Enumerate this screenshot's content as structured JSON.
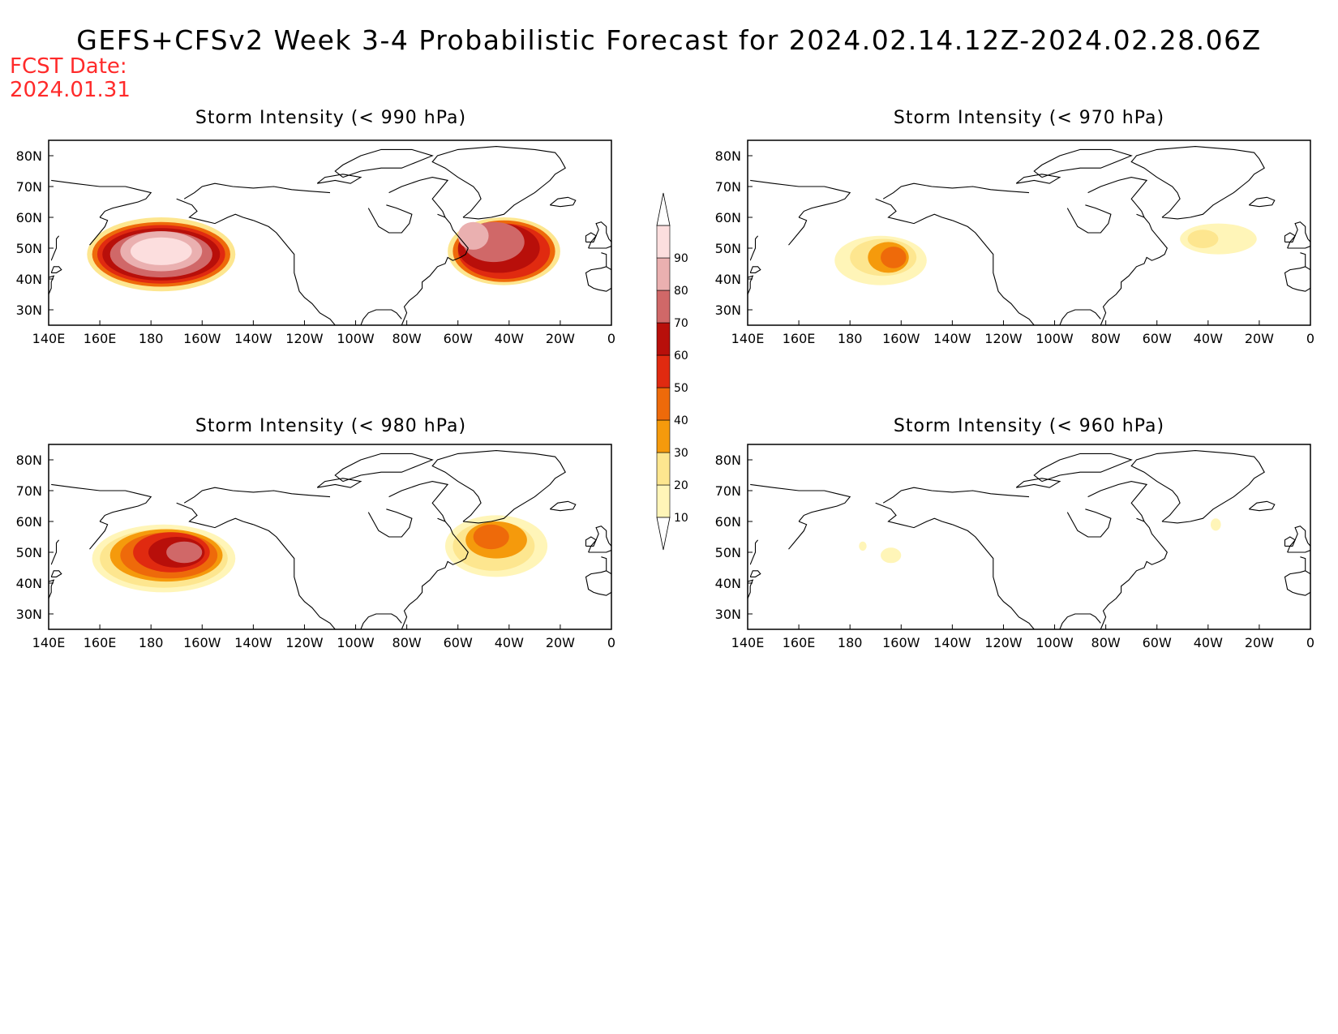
{
  "title": "GEFS+CFSv2 Week 3-4 Probabilistic Forecast for 2024.02.14.12Z-2024.02.28.06Z",
  "fcst_label": "FCST Date:",
  "fcst_date": "2024.01.31",
  "map": {
    "lon_range": [
      140,
      360
    ],
    "lat_range": [
      25,
      85
    ],
    "lon_ticks": [
      {
        "lon": 140,
        "label": "140E"
      },
      {
        "lon": 160,
        "label": "160E"
      },
      {
        "lon": 180,
        "label": "180"
      },
      {
        "lon": 200,
        "label": "160W"
      },
      {
        "lon": 220,
        "label": "140W"
      },
      {
        "lon": 240,
        "label": "120W"
      },
      {
        "lon": 260,
        "label": "100W"
      },
      {
        "lon": 280,
        "label": "80W"
      },
      {
        "lon": 300,
        "label": "60W"
      },
      {
        "lon": 320,
        "label": "40W"
      },
      {
        "lon": 340,
        "label": "20W"
      },
      {
        "lon": 360,
        "label": "0"
      }
    ],
    "lat_ticks": [
      {
        "lat": 30,
        "label": "30N"
      },
      {
        "lat": 40,
        "label": "40N"
      },
      {
        "lat": 50,
        "label": "50N"
      },
      {
        "lat": 60,
        "label": "60N"
      },
      {
        "lat": 70,
        "label": "70N"
      },
      {
        "lat": 80,
        "label": "80N"
      }
    ]
  },
  "colorbar": {
    "levels": [
      "10",
      "20",
      "30",
      "40",
      "50",
      "60",
      "70",
      "80",
      "90"
    ],
    "colors": [
      "#fff5b8",
      "#fde68f",
      "#f59a0c",
      "#ee6a0a",
      "#e02a10",
      "#b80f0a",
      "#d06868",
      "#eab0b0",
      "#fcdede"
    ]
  },
  "panels": [
    {
      "title": "Storm Intensity (< 990 hPa)",
      "blobs": [
        {
          "lon": 184,
          "lat": 48,
          "rlon": 29,
          "rlat": 12,
          "level": 1
        },
        {
          "lon": 184,
          "lat": 48,
          "rlon": 27,
          "rlat": 10.5,
          "level": 3
        },
        {
          "lon": 184,
          "lat": 48,
          "rlon": 25,
          "rlat": 9.5,
          "level": 4
        },
        {
          "lon": 184,
          "lat": 48,
          "rlon": 23,
          "rlat": 8.5,
          "level": 5
        },
        {
          "lon": 184,
          "lat": 48,
          "rlon": 20,
          "rlat": 7.5,
          "level": 6
        },
        {
          "lon": 184,
          "lat": 49,
          "rlon": 16,
          "rlat": 6.5,
          "level": 7
        },
        {
          "lon": 184,
          "lat": 49,
          "rlon": 12,
          "rlat": 4.5,
          "level": 8
        },
        {
          "lon": 318,
          "lat": 49,
          "rlon": 22,
          "rlat": 11,
          "level": 1
        },
        {
          "lon": 318,
          "lat": 49,
          "rlon": 20,
          "rlat": 10,
          "level": 3
        },
        {
          "lon": 318,
          "lat": 49,
          "rlon": 18,
          "rlat": 9,
          "level": 4
        },
        {
          "lon": 316,
          "lat": 50,
          "rlon": 16,
          "rlat": 8,
          "level": 5
        },
        {
          "lon": 314,
          "lat": 52,
          "rlon": 12,
          "rlat": 6.5,
          "level": 6
        },
        {
          "lon": 306,
          "lat": 54,
          "rlon": 6,
          "rlat": 4.5,
          "level": 7
        }
      ]
    },
    {
      "title": "Storm Intensity (< 970 hPa)",
      "blobs": [
        {
          "lon": 192,
          "lat": 46,
          "rlon": 18,
          "rlat": 8,
          "level": 0
        },
        {
          "lon": 193,
          "lat": 47,
          "rlon": 13,
          "rlat": 6,
          "level": 1
        },
        {
          "lon": 195,
          "lat": 47,
          "rlon": 8,
          "rlat": 5,
          "level": 2
        },
        {
          "lon": 197,
          "lat": 47,
          "rlon": 5,
          "rlat": 3.5,
          "level": 3
        },
        {
          "lon": 324,
          "lat": 53,
          "rlon": 15,
          "rlat": 5,
          "level": 0
        },
        {
          "lon": 318,
          "lat": 53,
          "rlon": 6,
          "rlat": 3,
          "level": 1
        }
      ]
    },
    {
      "title": "Storm Intensity (< 980 hPa)",
      "blobs": [
        {
          "lon": 185,
          "lat": 48,
          "rlon": 28,
          "rlat": 11,
          "level": 0
        },
        {
          "lon": 185,
          "lat": 48,
          "rlon": 25,
          "rlat": 9.5,
          "level": 1
        },
        {
          "lon": 186,
          "lat": 49,
          "rlon": 22,
          "rlat": 8.5,
          "level": 2
        },
        {
          "lon": 187,
          "lat": 49,
          "rlon": 19,
          "rlat": 7.5,
          "level": 3
        },
        {
          "lon": 188,
          "lat": 50,
          "rlon": 15,
          "rlat": 6.5,
          "level": 4
        },
        {
          "lon": 190,
          "lat": 50,
          "rlon": 11,
          "rlat": 5,
          "level": 5
        },
        {
          "lon": 193,
          "lat": 50,
          "rlon": 7,
          "rlat": 3.5,
          "level": 6
        },
        {
          "lon": 315,
          "lat": 52,
          "rlon": 20,
          "rlat": 10,
          "level": 0
        },
        {
          "lon": 314,
          "lat": 52,
          "rlon": 16,
          "rlat": 8,
          "level": 1
        },
        {
          "lon": 315,
          "lat": 54,
          "rlon": 12,
          "rlat": 6,
          "level": 2
        },
        {
          "lon": 313,
          "lat": 55,
          "rlon": 7,
          "rlat": 4,
          "level": 3
        }
      ]
    },
    {
      "title": "Storm Intensity (< 960 hPa)",
      "blobs": [
        {
          "lon": 196,
          "lat": 49,
          "rlon": 4,
          "rlat": 2.5,
          "level": 0
        },
        {
          "lon": 185,
          "lat": 52,
          "rlon": 1.5,
          "rlat": 1.5,
          "level": 0
        },
        {
          "lon": 323,
          "lat": 59,
          "rlon": 2,
          "rlat": 2,
          "level": 0
        }
      ]
    }
  ]
}
